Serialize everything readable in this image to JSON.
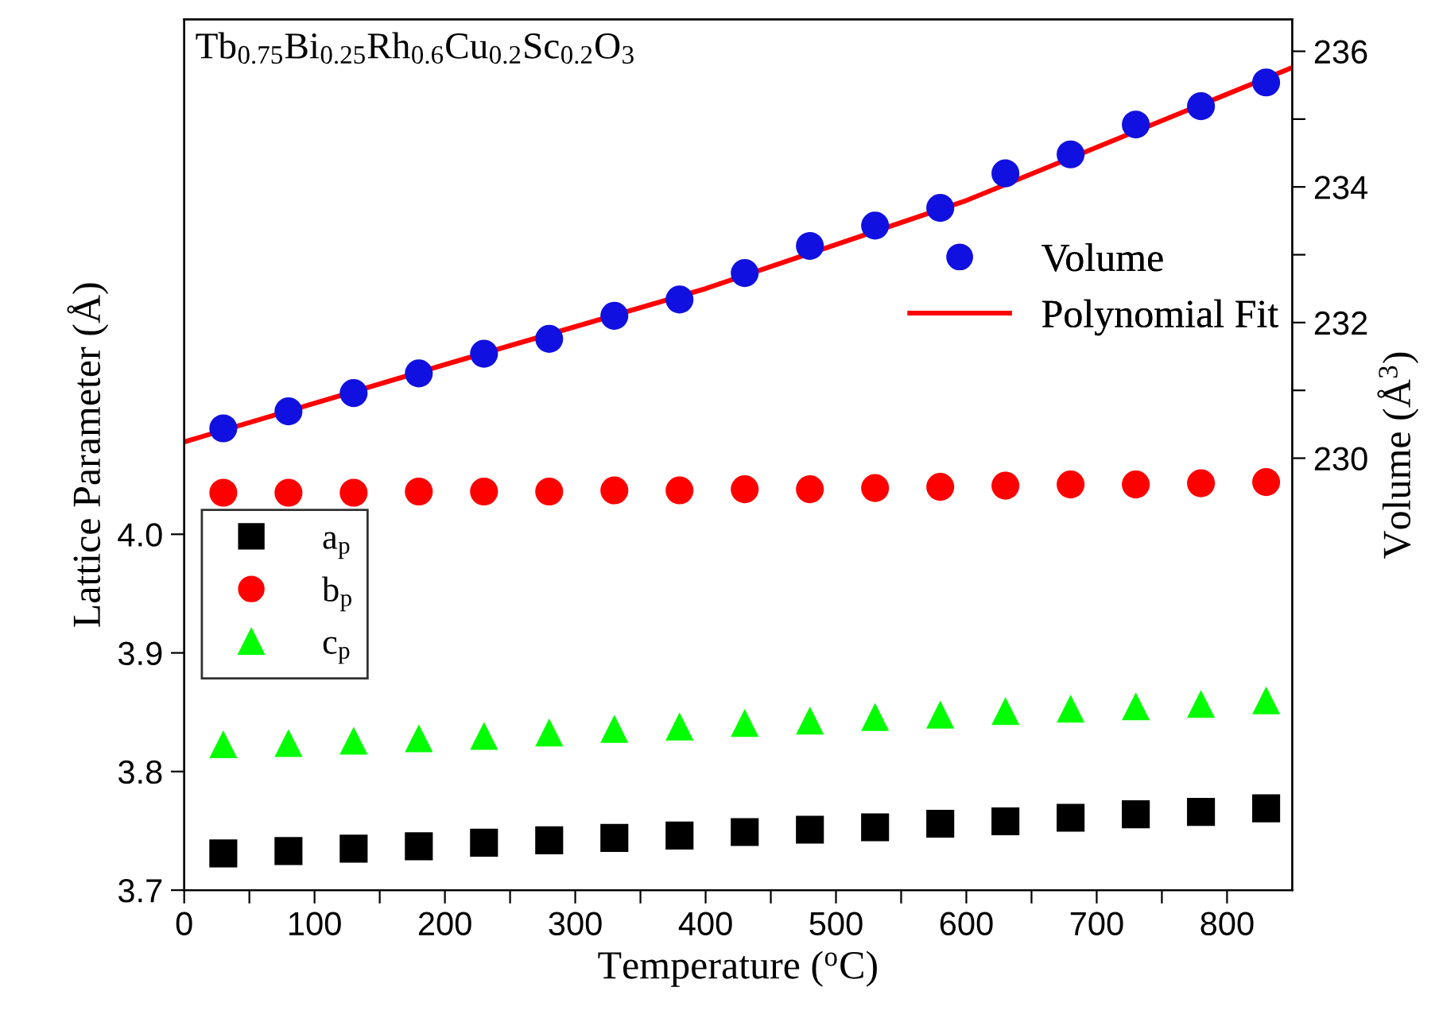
{
  "chart_data": {
    "type": "scatter",
    "xlabel": "Temperature ($^{o}$C)",
    "ylabel": "Lattice Parameter (Å)",
    "y2label": "Volume (Å$^{3}$)",
    "annotations": [
      "Tb$_{0.75}$Bi$_{0.25}$Rh$_{0.6}$Cu$_{0.2}$Sc$_{0.2}$O$_{3}$"
    ],
    "x": [
      30,
      80,
      130,
      180,
      230,
      280,
      330,
      380,
      430,
      480,
      530,
      580,
      630,
      680,
      730,
      780,
      830
    ],
    "series": [
      {
        "name": "a$_{p}$",
        "color": "#000000",
        "marker": "square",
        "values": [
          3.731,
          3.733,
          3.735,
          3.737,
          3.74,
          3.742,
          3.744,
          3.746,
          3.749,
          3.751,
          3.753,
          3.756,
          3.758,
          3.761,
          3.764,
          3.766,
          3.769
        ]
      },
      {
        "name": "b$_{p}$",
        "color": "#ff0000",
        "marker": "circle",
        "values": [
          4.035,
          4.035,
          4.035,
          4.036,
          4.036,
          4.036,
          4.037,
          4.037,
          4.038,
          4.038,
          4.039,
          4.04,
          4.041,
          4.042,
          4.042,
          4.043,
          4.044
        ]
      },
      {
        "name": "c$_{p}$",
        "color": "#00ff00",
        "marker": "triangle",
        "values": [
          3.823,
          3.824,
          3.826,
          3.828,
          3.83,
          3.833,
          3.836,
          3.838,
          3.841,
          3.843,
          3.846,
          3.848,
          3.851,
          3.853,
          3.855,
          3.857,
          3.86
        ]
      },
      {
        "name": "Volume",
        "color": "#1010e0",
        "marker": "circle",
        "axis": "y2",
        "values": [
          230.44,
          230.69,
          230.96,
          231.25,
          231.54,
          231.76,
          232.1,
          232.34,
          232.73,
          233.13,
          233.43,
          233.69,
          234.2,
          234.48,
          234.92,
          235.19,
          235.54
        ]
      },
      {
        "name": "Polynomial Fit",
        "type": "line",
        "color": "#ff0000",
        "axis": "y2",
        "marker": "none",
        "line_style": "solid",
        "x": [
          0,
          200,
          400,
          600,
          850
        ],
        "values": [
          230.24,
          231.38,
          232.5,
          233.8,
          235.76
        ]
      }
    ],
    "xlim": [
      0,
      850
    ],
    "xticks": [
      0,
      {
        "value": 50,
        "label": null
      },
      100,
      {
        "value": 150,
        "label": null
      },
      200,
      {
        "value": 250,
        "label": null
      },
      300,
      {
        "value": 350,
        "label": null
      },
      400,
      {
        "value": 450,
        "label": null
      },
      500,
      {
        "value": 550,
        "label": null
      },
      600,
      {
        "value": 650,
        "label": null
      },
      700,
      {
        "value": 750,
        "label": null
      },
      800
    ],
    "ylim": [
      3.7,
      4.434
    ],
    "yticks": [
      {
        "value": 3.7,
        "label": "3.7"
      },
      {
        "value": 3.8,
        "label": "3.8"
      },
      {
        "value": 3.9,
        "label": "3.9"
      },
      {
        "value": 4.0,
        "label": "4.0"
      }
    ],
    "y2lim": [
      223.63,
      236.47
    ],
    "y2ticks": [
      230,
      {
        "value": 231,
        "label": null
      },
      232,
      {
        "value": 233,
        "label": null
      },
      234,
      {
        "value": 235,
        "label": null
      },
      236
    ],
    "legend": "left",
    "grid": false
  }
}
